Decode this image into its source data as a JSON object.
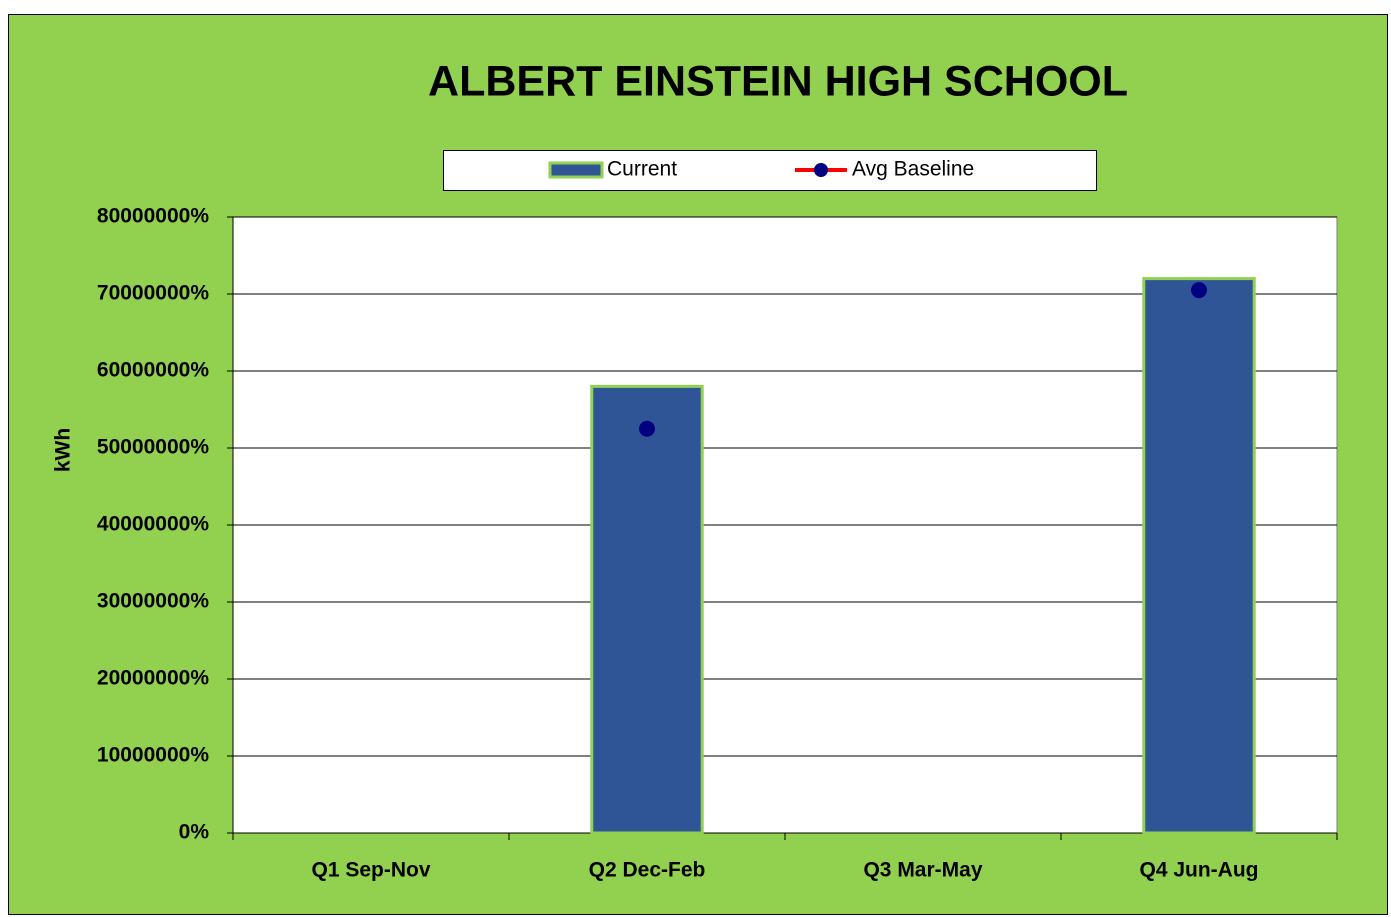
{
  "chart_data": {
    "type": "bar",
    "title": "ALBERT EINSTEIN HIGH SCHOOL",
    "y_label": "kWh",
    "categories": [
      "Q1 Sep-Nov",
      "Q2 Dec-Feb",
      "Q3 Mar-May",
      "Q4 Jun-Aug"
    ],
    "series": [
      {
        "name": "Current",
        "type": "bar",
        "color": "#2f5597",
        "edge_color": "#92d050",
        "values": [
          null,
          58000000,
          null,
          72000000
        ]
      },
      {
        "name": "Avg Baseline",
        "type": "line",
        "color": "#ff0000",
        "marker_color": "#000080",
        "values": [
          null,
          52500000,
          null,
          70500000
        ]
      }
    ],
    "ylim": [
      0,
      80000000
    ],
    "yticks": [
      {
        "value": 0,
        "label": "0%"
      },
      {
        "value": 10000000,
        "label": "10000000%"
      },
      {
        "value": 20000000,
        "label": "20000000%"
      },
      {
        "value": 30000000,
        "label": "30000000%"
      },
      {
        "value": 40000000,
        "label": "40000000%"
      },
      {
        "value": 50000000,
        "label": "50000000%"
      },
      {
        "value": 60000000,
        "label": "60000000%"
      },
      {
        "value": 70000000,
        "label": "70000000%"
      },
      {
        "value": 80000000,
        "label": "80000000%"
      }
    ],
    "grid": true,
    "background": "#92d050",
    "legend": "top"
  }
}
